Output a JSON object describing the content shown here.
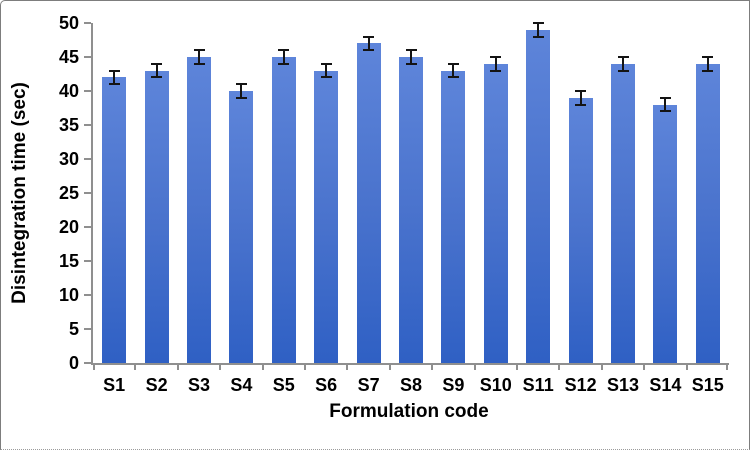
{
  "chart_data": {
    "type": "bar",
    "title": "",
    "xlabel": "Formulation code",
    "ylabel": "Disintegration time (sec)",
    "categories": [
      "S1",
      "S2",
      "S3",
      "S4",
      "S5",
      "S6",
      "S7",
      "S8",
      "S9",
      "S10",
      "S11",
      "S12",
      "S13",
      "S14",
      "S15"
    ],
    "values": [
      42,
      43,
      45,
      40,
      45,
      43,
      47,
      45,
      43,
      44,
      49,
      39,
      44,
      38,
      44
    ],
    "error_bars": [
      1,
      1,
      1,
      1,
      1,
      1,
      1,
      1,
      1,
      1,
      1,
      1,
      1,
      1,
      1
    ],
    "ylim": [
      0,
      50
    ],
    "ytick_step": 5,
    "yticks": [
      0,
      5,
      10,
      15,
      20,
      25,
      30,
      35,
      40,
      45,
      50
    ],
    "grid": false,
    "legend": false,
    "colors": {
      "bar_top": "#5e85da",
      "bar_mid": "#4a73cd",
      "bar_bottom": "#2f60c4",
      "error_bar": "#141414",
      "axis_line": "#8f8f8f",
      "text": "#000000",
      "frame_border": "#7d7d7d",
      "background": "#ffffff"
    }
  }
}
